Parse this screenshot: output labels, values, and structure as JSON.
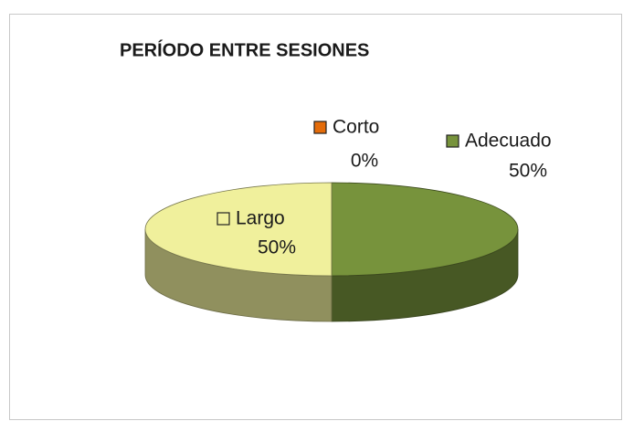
{
  "chart_data": {
    "type": "pie",
    "title": "PERÍODO ENTRE SESIONES",
    "categories": [
      "Corto",
      "Adecuado",
      "Largo"
    ],
    "values": [
      0,
      50,
      50
    ],
    "value_labels": [
      "0%",
      "50%",
      "50%"
    ],
    "colors": [
      "#e46c0a",
      "#77933c",
      "#f0f09c"
    ]
  }
}
